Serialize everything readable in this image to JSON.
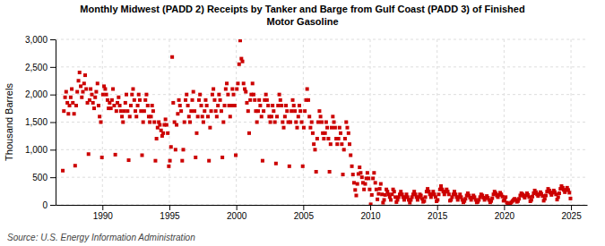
{
  "chart_data": {
    "type": "scatter",
    "title": "Monthly Midwest (PADD 2) Receipts by Tanker and Barge from Gulf Coast (PADD 3) of Finished\nMotor Gasoline",
    "ylabel": "Thousand Barrels",
    "source": "Source: U.S. Energy Information Administration",
    "color": "#CC0000",
    "marker": "square",
    "grid": true,
    "xlim": [
      1986.5,
      2026.2
    ],
    "ylim": [
      0,
      3000
    ],
    "xticks": [
      1990,
      1995,
      2000,
      2005,
      2010,
      2015,
      2020,
      2025
    ],
    "yticks": [
      0,
      500,
      {
        "value": 1000,
        "label": "1,000"
      },
      {
        "value": 1500,
        "label": "1,500"
      },
      {
        "value": 2000,
        "label": "2,000"
      },
      {
        "value": 2500,
        "label": "2,500"
      },
      {
        "value": 3000,
        "label": "3,000"
      }
    ],
    "x": [
      1987.04,
      1987.12,
      1987.21,
      1987.29,
      1987.38,
      1987.46,
      1987.54,
      1987.63,
      1987.71,
      1987.79,
      1987.88,
      1987.96,
      1988.04,
      1988.12,
      1988.21,
      1988.29,
      1988.38,
      1988.46,
      1988.54,
      1988.63,
      1988.71,
      1988.79,
      1988.88,
      1988.96,
      1989.04,
      1989.12,
      1989.21,
      1989.29,
      1989.38,
      1989.46,
      1989.54,
      1989.63,
      1989.71,
      1989.79,
      1989.88,
      1989.96,
      1990.04,
      1990.12,
      1990.21,
      1990.29,
      1990.38,
      1990.46,
      1990.54,
      1990.63,
      1990.71,
      1990.79,
      1990.88,
      1990.96,
      1991.04,
      1991.12,
      1991.21,
      1991.29,
      1991.38,
      1991.46,
      1991.54,
      1991.63,
      1991.71,
      1991.79,
      1991.88,
      1991.96,
      1992.04,
      1992.12,
      1992.21,
      1992.29,
      1992.38,
      1992.46,
      1992.54,
      1992.63,
      1992.71,
      1992.79,
      1992.88,
      1992.96,
      1993.04,
      1993.12,
      1993.21,
      1993.29,
      1993.38,
      1993.46,
      1993.54,
      1993.63,
      1993.71,
      1993.79,
      1993.88,
      1993.96,
      1994.04,
      1994.12,
      1994.21,
      1994.29,
      1994.38,
      1994.46,
      1994.54,
      1994.63,
      1994.71,
      1994.79,
      1994.88,
      1994.96,
      1995.04,
      1995.12,
      1995.21,
      1995.29,
      1995.38,
      1995.46,
      1995.54,
      1995.63,
      1995.71,
      1995.79,
      1995.88,
      1995.96,
      1996.04,
      1996.12,
      1996.21,
      1996.29,
      1996.38,
      1996.46,
      1996.54,
      1996.63,
      1996.71,
      1996.79,
      1996.88,
      1996.96,
      1997.04,
      1997.12,
      1997.21,
      1997.29,
      1997.38,
      1997.46,
      1997.54,
      1997.63,
      1997.71,
      1997.79,
      1997.88,
      1997.96,
      1998.04,
      1998.12,
      1998.21,
      1998.29,
      1998.38,
      1998.46,
      1998.54,
      1998.63,
      1998.71,
      1998.79,
      1998.88,
      1998.96,
      1999.04,
      1999.12,
      1999.21,
      1999.29,
      1999.38,
      1999.46,
      1999.54,
      1999.63,
      1999.71,
      1999.79,
      1999.88,
      1999.96,
      2000.04,
      2000.12,
      2000.21,
      2000.29,
      2000.38,
      2000.46,
      2000.54,
      2000.63,
      2000.71,
      2000.79,
      2000.88,
      2000.96,
      2001.04,
      2001.12,
      2001.21,
      2001.29,
      2001.38,
      2001.46,
      2001.54,
      2001.63,
      2001.71,
      2001.79,
      2001.88,
      2001.96,
      2002.04,
      2002.12,
      2002.21,
      2002.29,
      2002.38,
      2002.46,
      2002.54,
      2002.63,
      2002.71,
      2002.79,
      2002.88,
      2002.96,
      2003.04,
      2003.12,
      2003.21,
      2003.29,
      2003.38,
      2003.46,
      2003.54,
      2003.63,
      2003.71,
      2003.79,
      2003.88,
      2003.96,
      2004.04,
      2004.12,
      2004.21,
      2004.29,
      2004.38,
      2004.46,
      2004.54,
      2004.63,
      2004.71,
      2004.79,
      2004.88,
      2004.96,
      2005.04,
      2005.12,
      2005.21,
      2005.29,
      2005.38,
      2005.46,
      2005.54,
      2005.63,
      2005.71,
      2005.79,
      2005.88,
      2005.96,
      2006.04,
      2006.12,
      2006.21,
      2006.29,
      2006.38,
      2006.46,
      2006.54,
      2006.63,
      2006.71,
      2006.79,
      2006.88,
      2006.96,
      2007.04,
      2007.12,
      2007.21,
      2007.29,
      2007.38,
      2007.46,
      2007.54,
      2007.63,
      2007.71,
      2007.79,
      2007.88,
      2007.96,
      2008.04,
      2008.12,
      2008.21,
      2008.29,
      2008.38,
      2008.46,
      2008.54,
      2008.63,
      2008.71,
      2008.79,
      2008.88,
      2008.96,
      2009.04,
      2009.12,
      2009.21,
      2009.29,
      2009.38,
      2009.46,
      2009.54,
      2009.63,
      2009.71,
      2009.79,
      2009.88,
      2009.96,
      2010.04,
      2010.12,
      2010.21,
      2010.29,
      2010.38,
      2010.46,
      2010.54,
      2010.63,
      2010.71,
      2010.79,
      2010.88,
      2010.96,
      2011.04,
      2011.12,
      2011.21,
      2011.29,
      2011.38,
      2011.46,
      2011.54,
      2011.63,
      2011.71,
      2011.79,
      2011.88,
      2011.96,
      2012.04,
      2012.12,
      2012.21,
      2012.29,
      2012.38,
      2012.46,
      2012.54,
      2012.63,
      2012.71,
      2012.79,
      2012.88,
      2012.96,
      2013.04,
      2013.12,
      2013.21,
      2013.29,
      2013.38,
      2013.46,
      2013.54,
      2013.63,
      2013.71,
      2013.79,
      2013.88,
      2013.96,
      2014.04,
      2014.12,
      2014.21,
      2014.29,
      2014.38,
      2014.46,
      2014.54,
      2014.63,
      2014.71,
      2014.79,
      2014.88,
      2014.96,
      2015.04,
      2015.12,
      2015.21,
      2015.29,
      2015.38,
      2015.46,
      2015.54,
      2015.63,
      2015.71,
      2015.79,
      2015.88,
      2015.96,
      2016.04,
      2016.12,
      2016.21,
      2016.29,
      2016.38,
      2016.46,
      2016.54,
      2016.63,
      2016.71,
      2016.79,
      2016.88,
      2016.96,
      2017.04,
      2017.12,
      2017.21,
      2017.29,
      2017.38,
      2017.46,
      2017.54,
      2017.63,
      2017.71,
      2017.79,
      2017.88,
      2017.96,
      2018.04,
      2018.12,
      2018.21,
      2018.29,
      2018.38,
      2018.46,
      2018.54,
      2018.63,
      2018.71,
      2018.79,
      2018.88,
      2018.96,
      2019.04,
      2019.12,
      2019.21,
      2019.29,
      2019.38,
      2019.46,
      2019.54,
      2019.63,
      2019.71,
      2019.79,
      2019.88,
      2019.96,
      2020.04,
      2020.12,
      2020.21,
      2020.29,
      2020.38,
      2020.46,
      2020.54,
      2020.63,
      2020.71,
      2020.79,
      2020.88,
      2020.96,
      2021.04,
      2021.12,
      2021.21,
      2021.29,
      2021.38,
      2021.46,
      2021.54,
      2021.63,
      2021.71,
      2021.79,
      2021.88,
      2021.96,
      2022.04,
      2022.12,
      2022.21,
      2022.29,
      2022.38,
      2022.46,
      2022.54,
      2022.63,
      2022.71,
      2022.79,
      2022.88,
      2022.96,
      2023.04,
      2023.12,
      2023.21,
      2023.29,
      2023.38,
      2023.46,
      2023.54,
      2023.63,
      2023.71,
      2023.79,
      2023.88,
      2023.96,
      2024.04,
      2024.12,
      2024.21,
      2024.29,
      2024.38,
      2024.46,
      2024.54,
      2024.63,
      2024.71,
      2024.79,
      2024.88,
      2024.96
    ],
    "values": [
      620,
      1700,
      1950,
      2050,
      1850,
      1650,
      1800,
      1950,
      2100,
      1850,
      1650,
      710,
      1800,
      2050,
      2250,
      2400,
      2150,
      1950,
      2050,
      2200,
      2350,
      2100,
      1850,
      920,
      1900,
      2100,
      2000,
      1850,
      1750,
      1950,
      2050,
      2200,
      1800,
      1600,
      1500,
      860,
      2000,
      2150,
      2100,
      2000,
      1900,
      1750,
      1850,
      1750,
      1900,
      2100,
      1800,
      910,
      1700,
      1850,
      1950,
      1800,
      1700,
      1600,
      1500,
      1700,
      1850,
      2000,
      1700,
      810,
      1600,
      1800,
      2000,
      2100,
      1900,
      1700,
      1600,
      1800,
      2000,
      1900,
      1700,
      900,
      1500,
      1700,
      1900,
      2000,
      1800,
      1600,
      1500,
      1600,
      1800,
      1700,
      1500,
      800,
      1200,
      1400,
      1500,
      1450,
      1350,
      1250,
      1300,
      1450,
      1550,
      1450,
      1300,
      700,
      800,
      1050,
      2680,
      1850,
      1500,
      1000,
      1450,
      1650,
      1900,
      1800,
      1700,
      800,
      1000,
      1500,
      1900,
      2000,
      1800,
      1600,
      1500,
      1700,
      1900,
      2050,
      1700,
      860,
      1300,
      1600,
      1900,
      2000,
      1800,
      1600,
      1500,
      1700,
      1900,
      1800,
      1600,
      800,
      1400,
      1700,
      2000,
      2100,
      1900,
      1700,
      1600,
      1800,
      2000,
      1900,
      1700,
      860,
      1500,
      1800,
      2100,
      2200,
      2000,
      1800,
      1600,
      1800,
      2100,
      2000,
      1800,
      900,
      2100,
      2200,
      2550,
      2980,
      2650,
      2600,
      2200,
      2100,
      2050,
      1850,
      1700,
      1300,
      1900,
      2000,
      2200,
      2000,
      1900,
      1700,
      1500,
      1700,
      1900,
      1800,
      1600,
      800,
      1700,
      1900,
      2000,
      1900,
      1800,
      1600,
      1500,
      1600,
      1800,
      1700,
      1500,
      750,
      1600,
      1800,
      2000,
      1900,
      1800,
      1500,
      1400,
      1600,
      1800,
      1700,
      1500,
      700,
      1500,
      1700,
      1900,
      1800,
      1700,
      1500,
      1400,
      1600,
      1800,
      1700,
      1500,
      700,
      1400,
      1700,
      1900,
      2100,
      1900,
      1600,
      1400,
      1500,
      1300,
      1100,
      1000,
      600,
      1200,
      1500,
      1700,
      1600,
      1500,
      1300,
      1200,
      1300,
      1500,
      1400,
      1200,
      600,
      1100,
      1400,
      1600,
      1500,
      1400,
      1200,
      1100,
      1200,
      1400,
      1300,
      1100,
      550,
      1000,
      1200,
      1500,
      1400,
      1300,
      1100,
      900,
      700,
      550,
      400,
      270,
      170,
      380,
      560,
      680,
      580,
      500,
      400,
      280,
      380,
      480,
      580,
      480,
      280,
      10,
      180,
      480,
      580,
      400,
      280,
      100,
      200,
      290,
      380,
      190,
      40,
      90,
      180,
      280,
      240,
      190,
      140,
      90,
      190,
      280,
      240,
      140,
      50,
      90,
      140,
      190,
      240,
      190,
      140,
      90,
      140,
      190,
      140,
      90,
      40,
      90,
      140,
      190,
      240,
      190,
      140,
      90,
      140,
      190,
      170,
      110,
      55,
      70,
      140,
      240,
      290,
      240,
      190,
      140,
      190,
      240,
      190,
      140,
      65,
      90,
      190,
      280,
      340,
      280,
      240,
      190,
      240,
      280,
      240,
      190,
      75,
      90,
      140,
      190,
      240,
      190,
      140,
      90,
      140,
      190,
      140,
      90,
      45,
      70,
      110,
      170,
      210,
      170,
      130,
      90,
      130,
      170,
      140,
      90,
      45,
      55,
      90,
      140,
      190,
      170,
      130,
      90,
      120,
      160,
      130,
      90,
      45,
      70,
      120,
      190,
      240,
      210,
      170,
      140,
      180,
      220,
      190,
      150,
      75,
      90,
      140,
      40,
      25,
      15,
      25,
      45,
      70,
      90,
      110,
      90,
      55,
      70,
      110,
      170,
      210,
      190,
      160,
      130,
      170,
      210,
      180,
      140,
      65,
      90,
      150,
      210,
      260,
      230,
      190,
      160,
      190,
      230,
      200,
      160,
      75,
      110,
      170,
      240,
      290,
      260,
      220,
      180,
      220,
      260,
      230,
      190,
      95,
      140,
      210,
      290,
      340,
      310,
      270,
      230,
      270,
      310,
      270,
      220,
      115
    ]
  }
}
